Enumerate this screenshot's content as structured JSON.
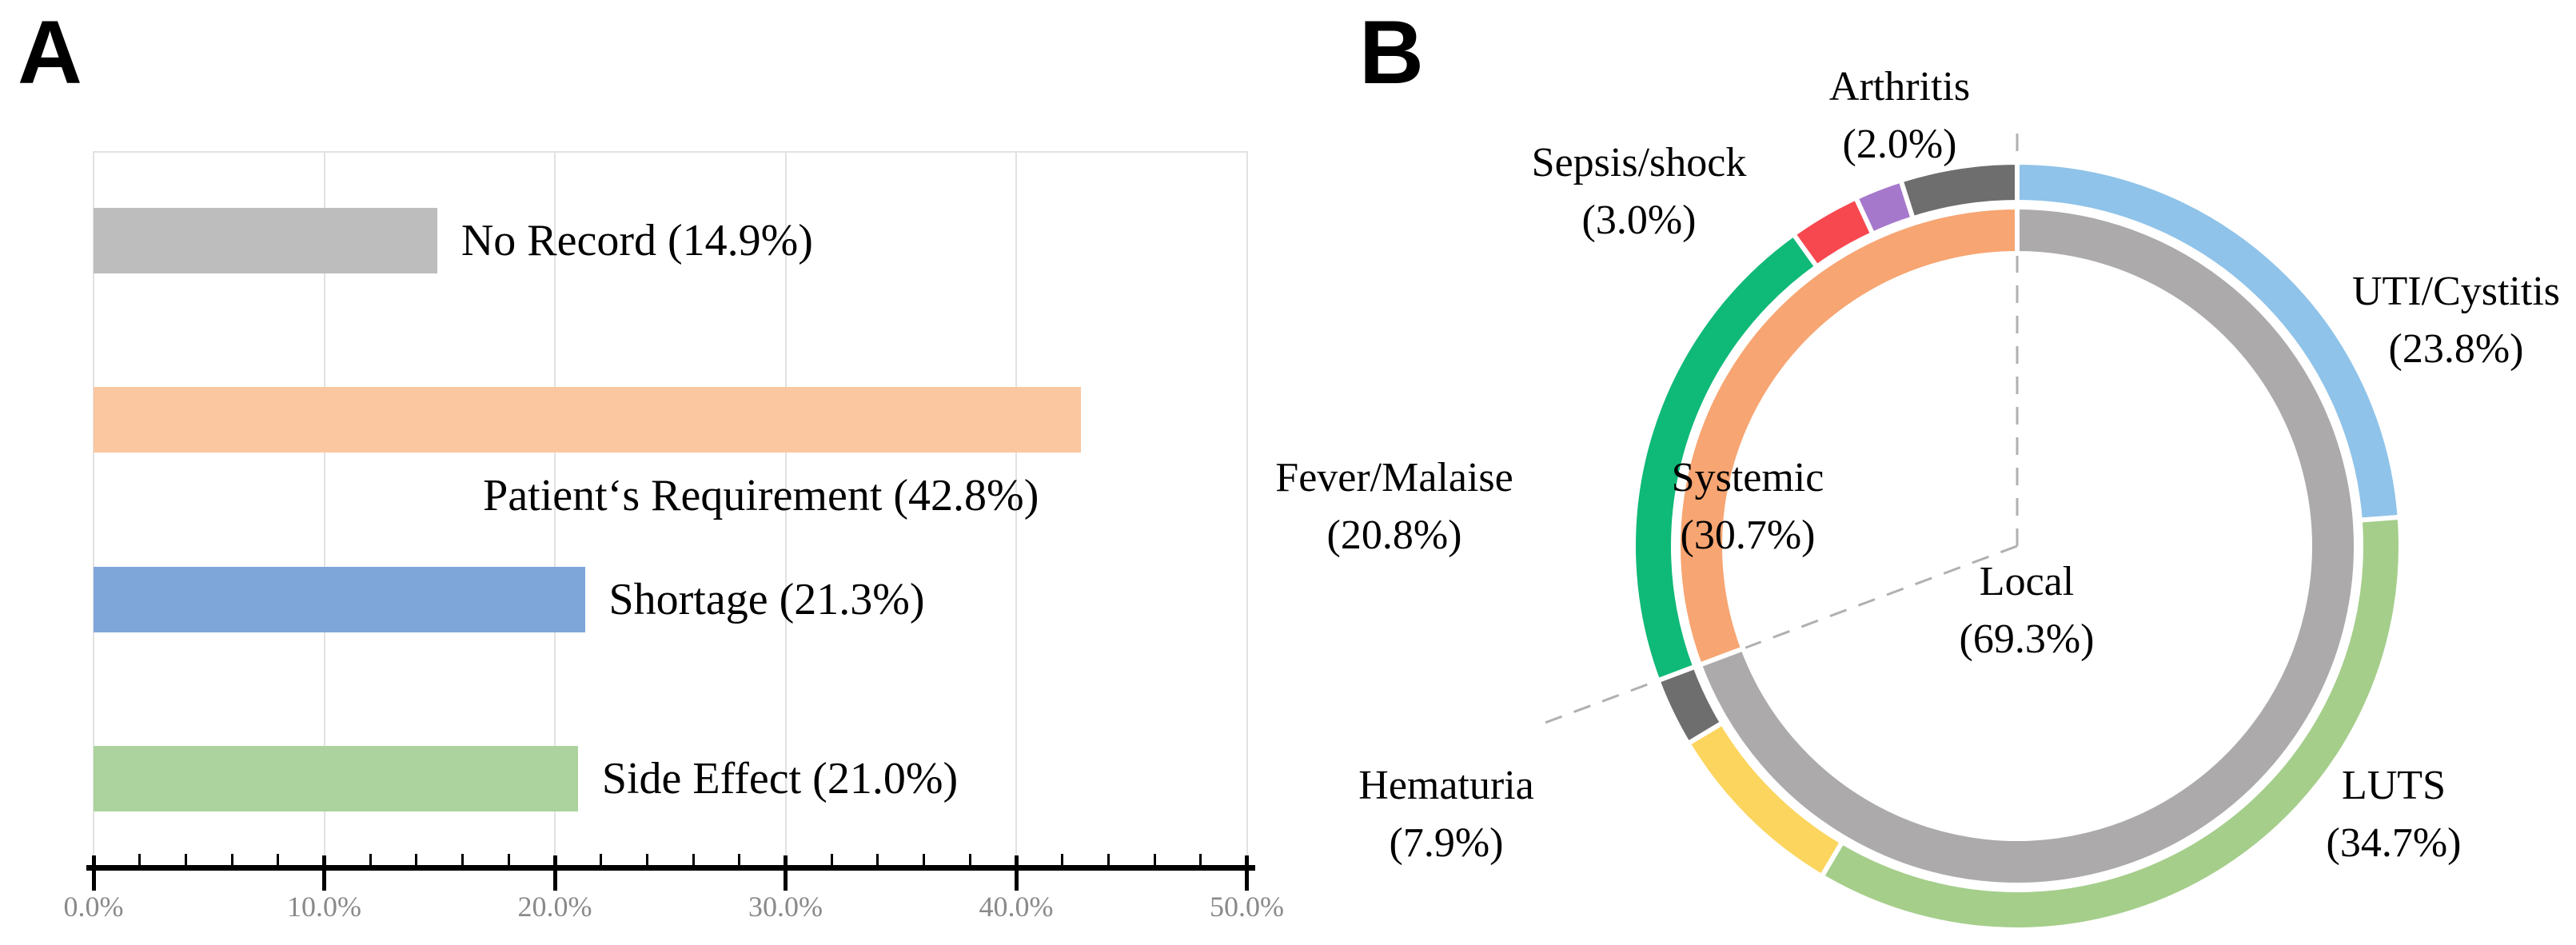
{
  "panels": {
    "a": {
      "letter": "A"
    },
    "b": {
      "letter": "B"
    }
  },
  "chart_data": [
    {
      "type": "bar",
      "orientation": "horizontal",
      "title": "",
      "xlabel": "",
      "ylabel": "",
      "categories": [
        "No Record",
        "Patient‘s Requirement",
        "Shortage",
        "Side Effect"
      ],
      "values": [
        14.9,
        42.8,
        21.3,
        21.0
      ],
      "labels": [
        "No Record (14.9%)",
        "Patient‘s Requirement (42.8%)",
        "Shortage (21.3%)",
        "Side Effect (21.0%)"
      ],
      "bar_colors": [
        "#BDBDBD",
        "#FBC7A0",
        "#7EA6D8",
        "#ACD39D"
      ],
      "label_placement": [
        "right",
        "below",
        "right",
        "right"
      ],
      "xlim": [
        0,
        50
      ],
      "x_ticks": [
        "0.0%",
        "10.0%",
        "20.0%",
        "30.0%",
        "40.0%",
        "50.0%"
      ],
      "x_tick_values": [
        0,
        10,
        20,
        30,
        40,
        50
      ],
      "minor_tick_step": 2,
      "grid": true,
      "gridline_color": "#E2E2E2",
      "axis_color": "#000000",
      "tick_label_color": "#8A8A8A"
    },
    {
      "type": "donut",
      "direction": "clockwise",
      "start_angle": "12-oclock",
      "divider_line_color": "#B0B0B0",
      "outer_ring": {
        "name": "symptoms",
        "segments": [
          {
            "key": "uti",
            "label": "UTI/Cystitis",
            "value": 23.8,
            "color": "#8FC3E9"
          },
          {
            "key": "luts",
            "label": "LUTS",
            "value": 34.7,
            "color": "#A5CE8B"
          },
          {
            "key": "hematuria",
            "label": "Hematuria",
            "value": 7.9,
            "color": "#FBD55E"
          },
          {
            "key": "local-other",
            "label": "",
            "value": 2.9,
            "color": "#6E6E6E"
          },
          {
            "key": "fever",
            "label": "Fever/Malaise",
            "value": 20.8,
            "color": "#0FB977"
          },
          {
            "key": "sepsis",
            "label": "Sepsis/shock",
            "value": 3.0,
            "color": "#F8484F"
          },
          {
            "key": "arthritis",
            "label": "Arthritis",
            "value": 2.0,
            "color": "#A678CC"
          },
          {
            "key": "systemic-other",
            "label": "",
            "value": 4.9,
            "color": "#6E6E6E"
          }
        ]
      },
      "inner_ring": {
        "name": "groups",
        "segments": [
          {
            "key": "local",
            "label": "Local",
            "value": 69.3,
            "color": "#ACAAAA"
          },
          {
            "key": "systemic",
            "label": "Systemic",
            "value": 30.7,
            "color": "#F7A572"
          }
        ]
      },
      "callouts": {
        "arthritis": "Arthritis\n(2.0%)",
        "sepsis": "Sepsis/shock\n(3.0%)",
        "uti": "UTI/Cystitis\n(23.8%)",
        "fever": "Fever/Malaise\n(20.8%)",
        "systemic": "Systemic\n(30.7%)",
        "local": "Local\n(69.3%)",
        "hematuria": "Hematuria\n(7.9%)",
        "luts": "LUTS\n(34.7%)"
      }
    }
  ]
}
